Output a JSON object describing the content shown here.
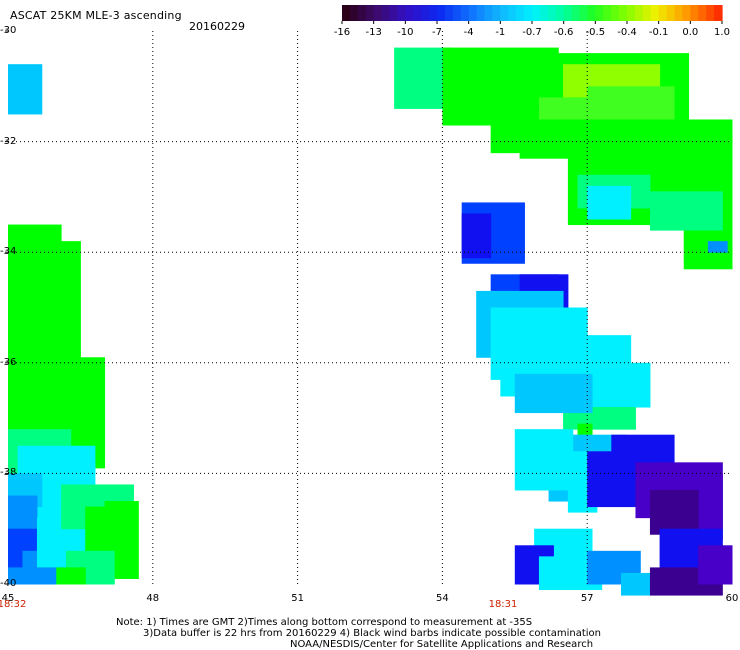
{
  "header": {
    "title": "ASCAT 25KM MLE-3 ascending",
    "date": "20160229"
  },
  "colorbar": {
    "labels": [
      "-16",
      "-13",
      "-10",
      "-7",
      "-4",
      "-1",
      "-0.7",
      "-0.6",
      "-0.5",
      "-0.4",
      "-0.1",
      "0.0",
      "1.0"
    ],
    "colors": [
      "#2a0018",
      "#3c0a6e",
      "#3210c8",
      "#0c28f0",
      "#1070ff",
      "#10b8ff",
      "#00f0ff",
      "#00ffa0",
      "#20ff20",
      "#80ff00",
      "#f0f000",
      "#ff9800",
      "#ff3000"
    ]
  },
  "map": {
    "lat_labels": [
      "-30",
      "-32",
      "-34",
      "-36",
      "-38",
      "-40"
    ],
    "lon_labels": [
      "45",
      "48",
      "51",
      "54",
      "57",
      "60"
    ],
    "time_labels": [
      "18:32",
      "18:31"
    ]
  },
  "notes": [
    "Note: 1) Times are GMT 2)Times along bottom correspond to measurement at -35S",
    "3)Data buffer is 22 hrs from 20160229 4) Black wind barbs indicate possible contamination",
    "NOAA/NESDIS/Center for Satellite Applications and Research"
  ]
}
